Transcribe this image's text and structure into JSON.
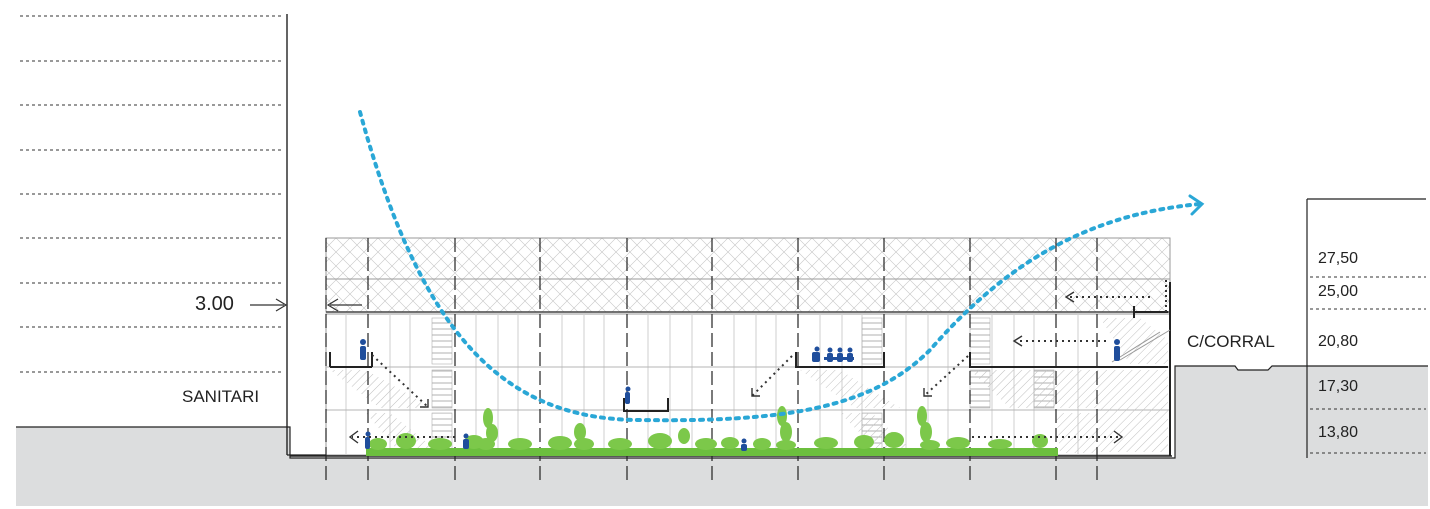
{
  "labels": {
    "height_marker": "3.00",
    "left_building": "SANITARI",
    "right_street": "C/CORRAL"
  },
  "levels": [
    "27,50",
    "25,00",
    "20,80",
    "17,30",
    "13,80"
  ],
  "colors": {
    "ground": "#dcddde",
    "airflow": "#2aa7d6",
    "vegetation": "#6cbf3e",
    "people": "#1f4e9c",
    "structure": "#555555"
  },
  "icons": [
    "airflow-arrow",
    "ventilation-arrow",
    "person-figure",
    "vegetation",
    "dimension-arrow"
  ]
}
